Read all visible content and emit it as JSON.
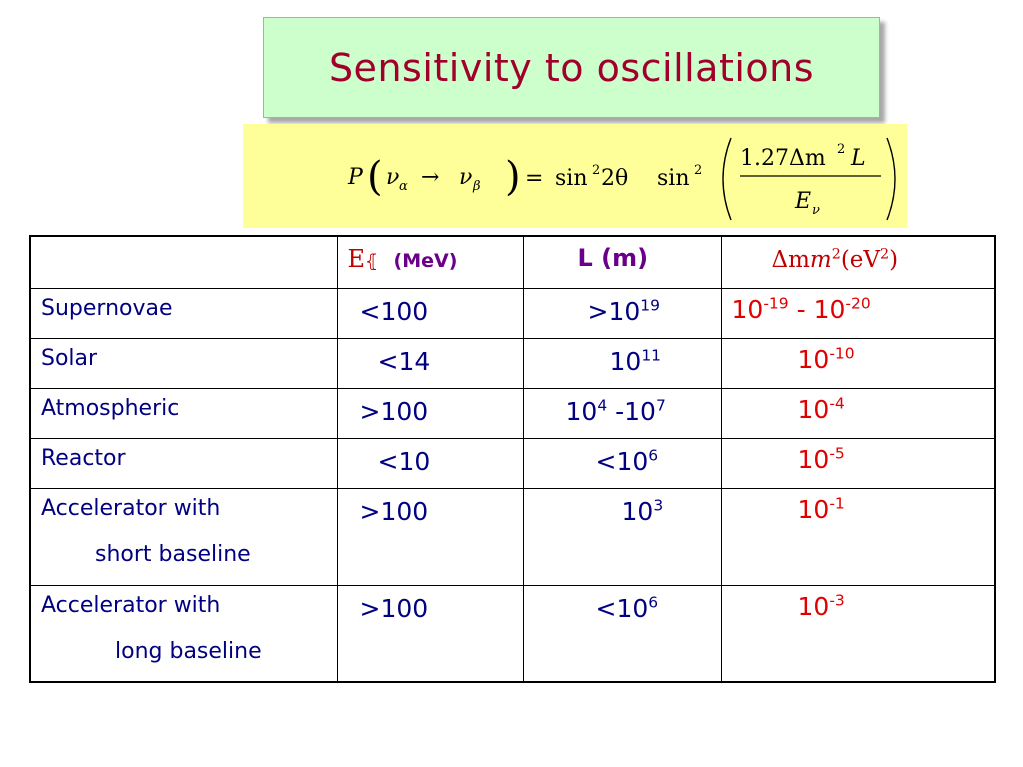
{
  "title": "Sensitivity to oscillations",
  "formula": {
    "lhs_P": "P",
    "nu": "ν",
    "alpha": "α",
    "beta": "β",
    "arrow": "→",
    "equals": "=",
    "sin": "sin",
    "sq": "2",
    "two_theta": "2θ",
    "numerator": "1.27Δm",
    "numerator_sq": "2",
    "L": "L",
    "denominator": "E",
    "denominator_sub": "ν"
  },
  "table": {
    "headers": {
      "energy_symbol": "E",
      "energy_unit": "(MeV)",
      "length": "L (m)",
      "mass_delta": "Δm",
      "mass_sq": "2",
      "mass_unit": "(eV",
      "mass_unit_sq": "2",
      "mass_close": ")"
    },
    "rows": [
      {
        "name": "Supernovae",
        "name2": "",
        "energy": "<100",
        "length_base": ">10",
        "length_exp": "19",
        "length_mid": "",
        "length_base2": "",
        "length_exp2": "",
        "mass_base": "10",
        "mass_exp": "-19",
        "mass_sep": " - ",
        "mass_base2": "10",
        "mass_exp2": "-20"
      },
      {
        "name": "Solar",
        "name2": "",
        "energy": "<14",
        "length_base": "10",
        "length_exp": "11",
        "length_mid": "",
        "length_base2": "",
        "length_exp2": "",
        "mass_base": "10",
        "mass_exp": "-10",
        "mass_sep": "",
        "mass_base2": "",
        "mass_exp2": ""
      },
      {
        "name": "Atmospheric",
        "name2": "",
        "energy": ">100",
        "length_base": "10",
        "length_exp": "4",
        "length_mid": " -",
        "length_base2": "10",
        "length_exp2": "7",
        "mass_base": "10",
        "mass_exp": "-4",
        "mass_sep": "",
        "mass_base2": "",
        "mass_exp2": ""
      },
      {
        "name": "Reactor",
        "name2": "",
        "energy": "<10",
        "length_base": "<10",
        "length_exp": "6",
        "length_mid": "",
        "length_base2": "",
        "length_exp2": "",
        "mass_base": "10",
        "mass_exp": "-5",
        "mass_sep": "",
        "mass_base2": "",
        "mass_exp2": ""
      },
      {
        "name": "Accelerator with",
        "name2": "short baseline",
        "energy": ">100",
        "length_base": "10",
        "length_exp": "3",
        "length_mid": "",
        "length_base2": "",
        "length_exp2": "",
        "mass_base": "10",
        "mass_exp": "-1",
        "mass_sep": "",
        "mass_base2": "",
        "mass_exp2": ""
      },
      {
        "name": "Accelerator with",
        "name2": "long baseline",
        "energy": ">100",
        "length_base": "<10",
        "length_exp": "6",
        "length_mid": "",
        "length_base2": "",
        "length_exp2": "",
        "mass_base": "10",
        "mass_exp": "-3",
        "mass_sep": "",
        "mass_base2": "",
        "mass_exp2": ""
      }
    ]
  }
}
